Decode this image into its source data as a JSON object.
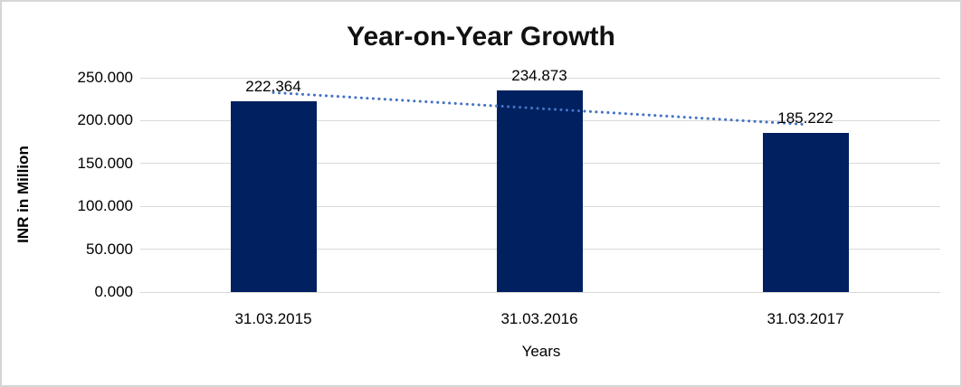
{
  "chart_data": {
    "type": "bar",
    "title": "Year-on-Year Growth",
    "xlabel": "Years",
    "ylabel": "INR in Million",
    "categories": [
      "31.03.2015",
      "31.03.2016",
      "31.03.2017"
    ],
    "values": [
      222.364,
      234.873,
      185.222
    ],
    "value_labels": [
      "222.364",
      "234.873",
      "185.222"
    ],
    "ylim": [
      0,
      250
    ],
    "yticks": [
      0,
      50,
      100,
      150,
      200,
      250
    ],
    "ytick_labels": [
      "0.000",
      "50.000",
      "100.000",
      "150.000",
      "200.000",
      "250.000"
    ],
    "grid": true,
    "legend": "none",
    "trendline": {
      "type": "linear",
      "style": "dotted"
    },
    "colors": {
      "bar": "#002060",
      "gridline": "#d9d9d9",
      "trendline": "#4472c4",
      "text": "#000000",
      "title": "#111111",
      "frame_border": "#d6d6d6",
      "background": "#ffffff"
    }
  }
}
